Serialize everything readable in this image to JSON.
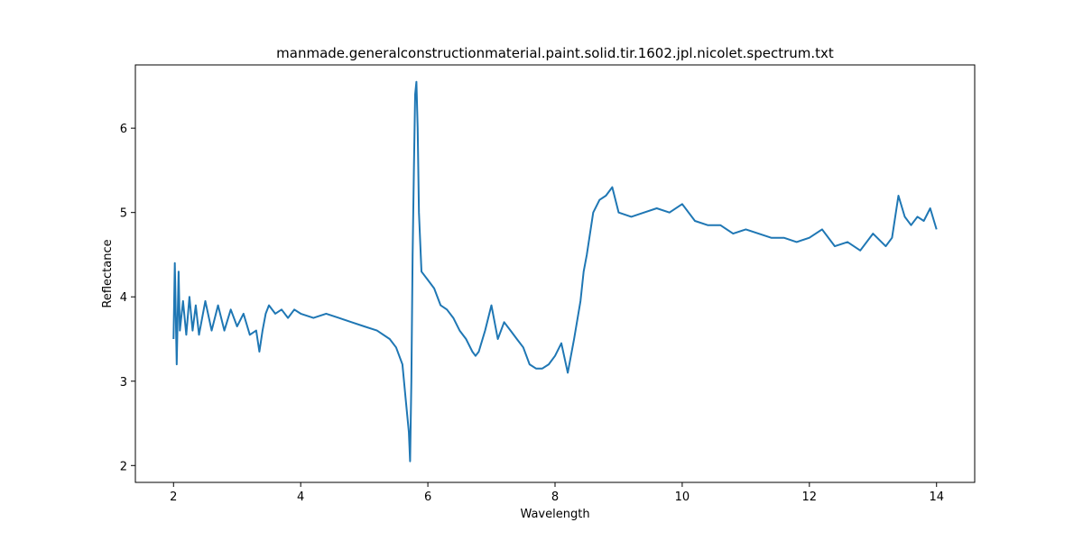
{
  "chart_data": {
    "type": "line",
    "title": "manmade.generalconstructionmaterial.paint.solid.tir.1602.jpl.nicolet.spectrum.txt",
    "xlabel": "Wavelength",
    "ylabel": "Reflectance",
    "xlim": [
      1.4,
      14.6
    ],
    "ylim": [
      1.8,
      6.75
    ],
    "xticks": [
      2,
      4,
      6,
      8,
      10,
      12,
      14
    ],
    "yticks": [
      2,
      3,
      4,
      5,
      6
    ],
    "grid": false,
    "legend": "none",
    "series": [
      {
        "color": "#1f77b4",
        "x": [
          2.0,
          2.02,
          2.05,
          2.08,
          2.1,
          2.15,
          2.2,
          2.25,
          2.3,
          2.35,
          2.4,
          2.5,
          2.6,
          2.7,
          2.8,
          2.9,
          3.0,
          3.1,
          3.2,
          3.3,
          3.35,
          3.4,
          3.45,
          3.5,
          3.6,
          3.7,
          3.8,
          3.9,
          4.0,
          4.2,
          4.4,
          4.6,
          4.8,
          5.0,
          5.2,
          5.4,
          5.5,
          5.6,
          5.65,
          5.7,
          5.72,
          5.74,
          5.76,
          5.78,
          5.8,
          5.82,
          5.84,
          5.86,
          5.9,
          6.0,
          6.1,
          6.2,
          6.3,
          6.4,
          6.5,
          6.6,
          6.7,
          6.75,
          6.8,
          6.9,
          7.0,
          7.1,
          7.2,
          7.3,
          7.4,
          7.5,
          7.6,
          7.7,
          7.8,
          7.9,
          8.0,
          8.1,
          8.2,
          8.3,
          8.4,
          8.45,
          8.5,
          8.6,
          8.7,
          8.8,
          8.9,
          9.0,
          9.2,
          9.4,
          9.6,
          9.8,
          10.0,
          10.2,
          10.4,
          10.6,
          10.8,
          11.0,
          11.2,
          11.4,
          11.6,
          11.8,
          12.0,
          12.2,
          12.4,
          12.6,
          12.8,
          13.0,
          13.2,
          13.3,
          13.4,
          13.5,
          13.6,
          13.7,
          13.8,
          13.9,
          14.0
        ],
        "y": [
          3.5,
          4.4,
          3.2,
          4.3,
          3.6,
          3.95,
          3.55,
          4.0,
          3.6,
          3.9,
          3.55,
          3.95,
          3.6,
          3.9,
          3.6,
          3.85,
          3.65,
          3.8,
          3.55,
          3.6,
          3.35,
          3.6,
          3.8,
          3.9,
          3.8,
          3.85,
          3.75,
          3.85,
          3.8,
          3.75,
          3.8,
          3.75,
          3.7,
          3.65,
          3.6,
          3.5,
          3.4,
          3.2,
          2.8,
          2.4,
          2.05,
          3.0,
          4.5,
          5.5,
          6.4,
          6.55,
          6.0,
          5.0,
          4.3,
          4.2,
          4.1,
          3.9,
          3.85,
          3.75,
          3.6,
          3.5,
          3.35,
          3.3,
          3.35,
          3.6,
          3.9,
          3.5,
          3.7,
          3.6,
          3.5,
          3.4,
          3.2,
          3.15,
          3.15,
          3.2,
          3.3,
          3.45,
          3.1,
          3.5,
          3.95,
          4.3,
          4.5,
          5.0,
          5.15,
          5.2,
          5.3,
          5.0,
          4.95,
          5.0,
          5.05,
          5.0,
          5.1,
          4.9,
          4.85,
          4.85,
          4.75,
          4.8,
          4.75,
          4.7,
          4.7,
          4.65,
          4.7,
          4.8,
          4.6,
          4.65,
          4.55,
          4.75,
          4.6,
          4.7,
          5.2,
          4.95,
          4.85,
          4.95,
          4.9,
          5.05,
          4.8
        ]
      }
    ]
  }
}
